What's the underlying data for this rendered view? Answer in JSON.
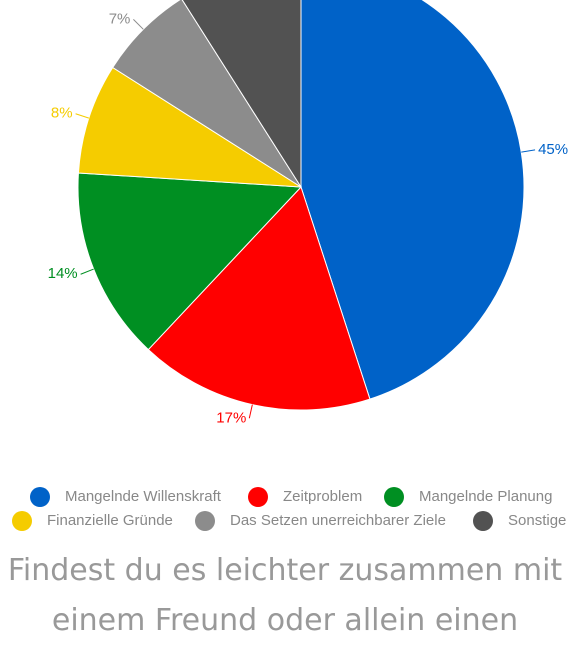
{
  "chart_data": {
    "type": "pie",
    "categories": [
      "Mangelnde Willenskraft",
      "Zeitproblem",
      "Mangelnde Planung",
      "Finanzielle Gründe",
      "Das Setzen unerreichbarer Ziele",
      "Sonstige"
    ],
    "values": [
      45,
      17,
      14,
      8,
      7,
      9
    ],
    "value_labels": [
      "45%",
      "17%",
      "14%",
      "8%",
      "7%",
      null
    ],
    "colors": [
      "#0062c8",
      "#ff0000",
      "#008f22",
      "#f5cc00",
      "#8c8c8c",
      "#525252"
    ]
  },
  "question": {
    "lines": [
      "Findest du es leichter zusammen mit",
      "einem Freund oder allein einen"
    ]
  }
}
